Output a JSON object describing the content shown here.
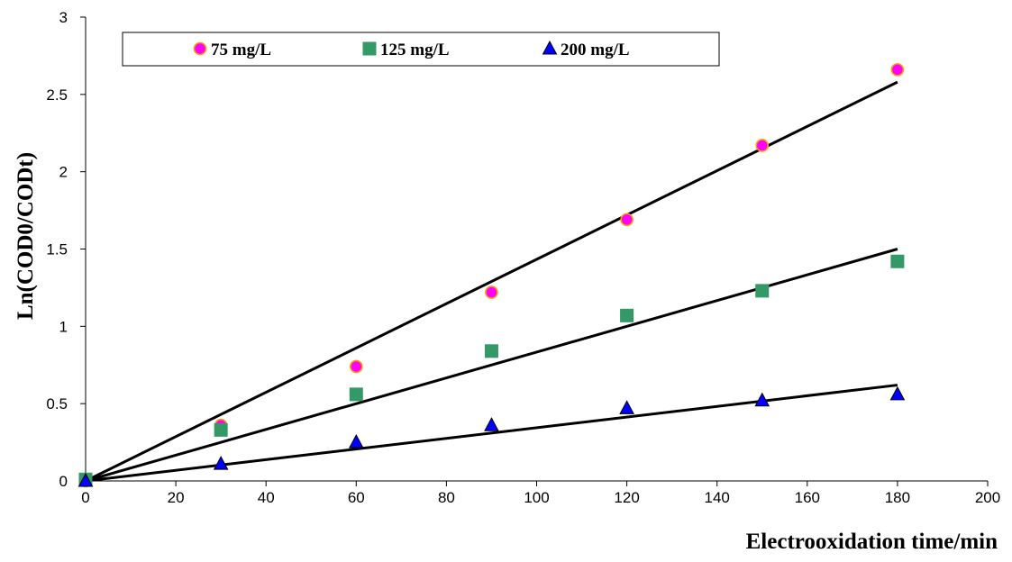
{
  "chart_data": {
    "type": "scatter",
    "title": "",
    "xlabel": "Electrooxidation time/min",
    "ylabel": "Ln(COD0/CODt)",
    "xlim": [
      0,
      200
    ],
    "ylim": [
      0,
      3
    ],
    "xticks": [
      0,
      20,
      40,
      60,
      80,
      100,
      120,
      140,
      160,
      180,
      200
    ],
    "yticks": [
      0,
      0.5,
      1,
      1.5,
      2,
      2.5,
      3
    ],
    "ytick_labels": [
      "0",
      "0.5",
      "1",
      "1.5",
      "2",
      "2.5",
      "3"
    ],
    "grid": false,
    "legend_position": "top",
    "x": [
      0,
      30,
      60,
      90,
      120,
      150,
      180
    ],
    "series": [
      {
        "name": "75  mg/L",
        "marker": "circle",
        "color": "#ff00ff",
        "edge_color": "#ff9900",
        "values": [
          0,
          0.36,
          0.74,
          1.22,
          1.69,
          2.17,
          2.66
        ],
        "fit_line": [
          [
            0,
            0
          ],
          [
            180,
            2.58
          ]
        ]
      },
      {
        "name": "125  mg/L",
        "marker": "square",
        "color": "#339966",
        "edge_color": "#339966",
        "values": [
          0.01,
          0.33,
          0.56,
          0.84,
          1.07,
          1.23,
          1.42
        ],
        "fit_line": [
          [
            0,
            0
          ],
          [
            180,
            1.5
          ]
        ]
      },
      {
        "name": "200  mg/L",
        "marker": "triangle",
        "color": "#0000ff",
        "edge_color": "#000000",
        "values": [
          0,
          0.11,
          0.25,
          0.36,
          0.47,
          0.52,
          0.56
        ],
        "fit_line": [
          [
            0,
            0
          ],
          [
            180,
            0.62
          ]
        ]
      }
    ]
  }
}
